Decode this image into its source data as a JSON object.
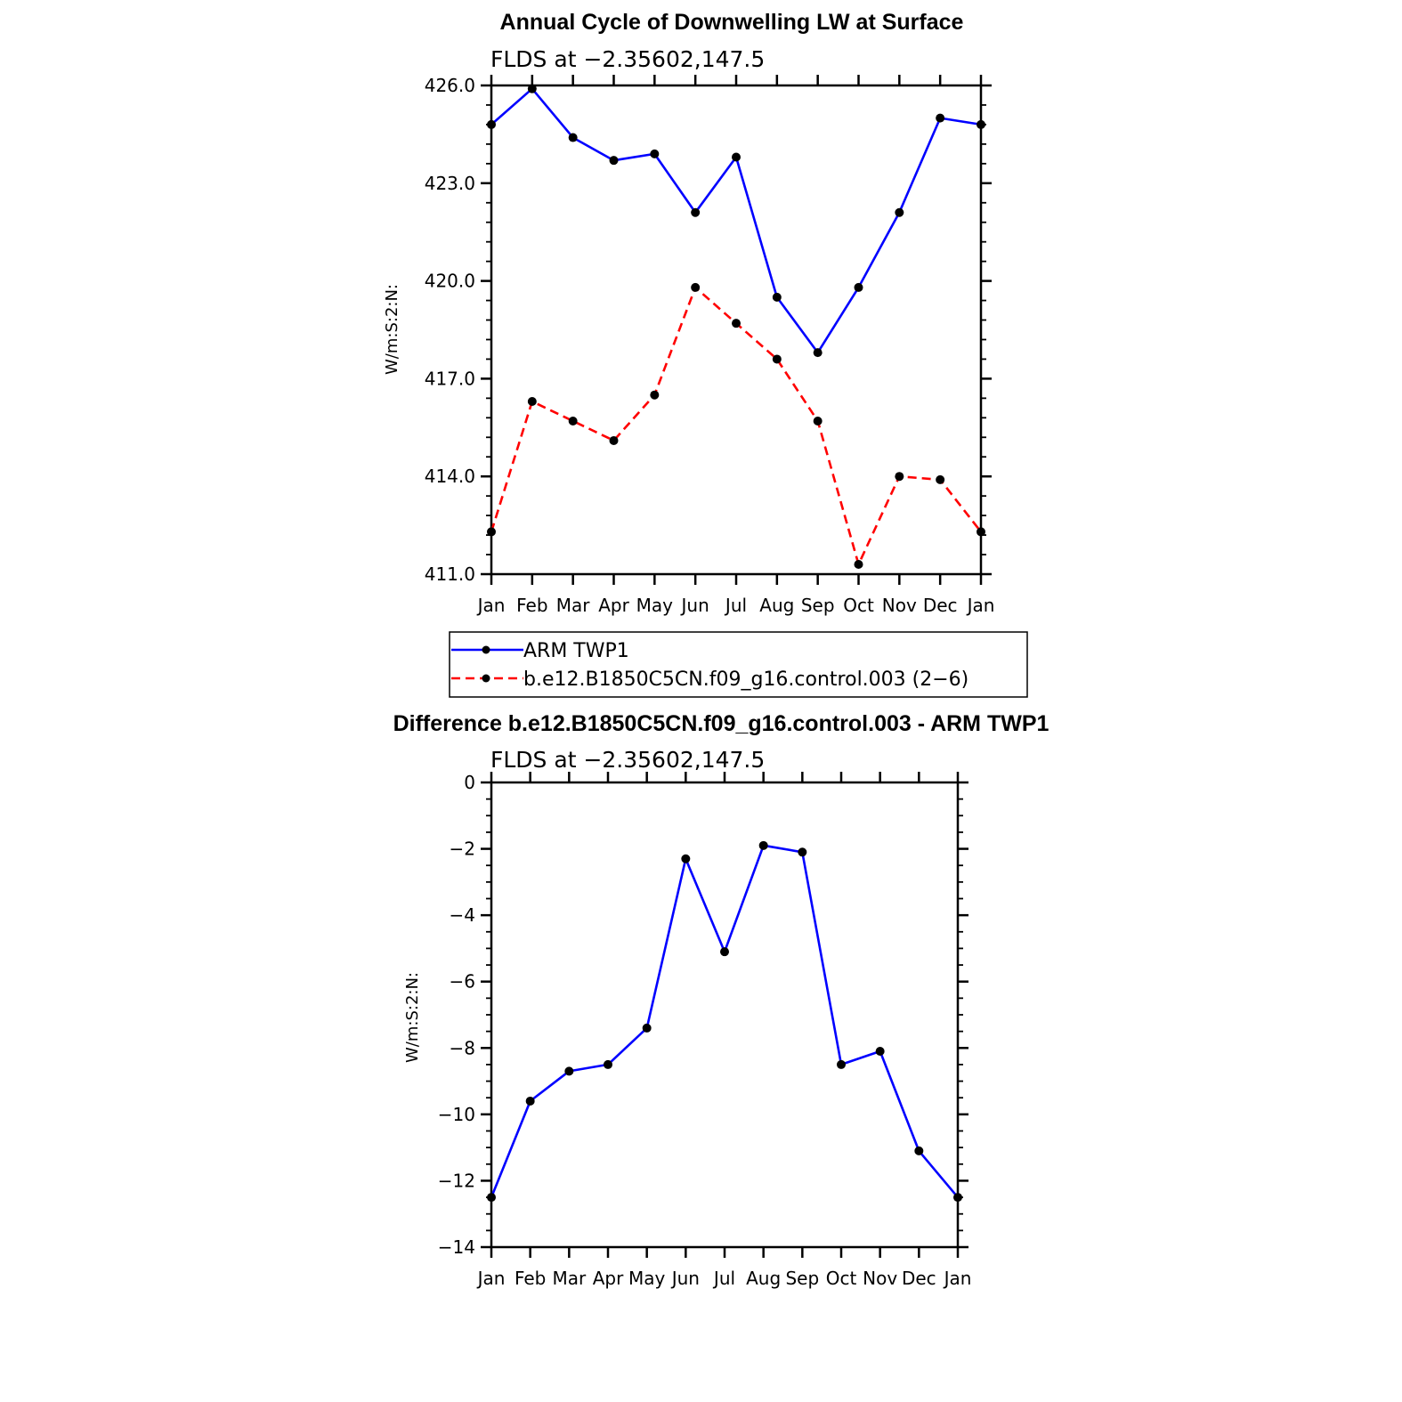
{
  "chart_data": [
    {
      "type": "line",
      "title": "Annual Cycle of Downwelling LW at Surface",
      "subtitle": "FLDS at −2.35602,147.5",
      "ylabel": "W/m:S:2:N:",
      "ylim": [
        411.0,
        426.0
      ],
      "yticks": [
        "411.0",
        "414.0",
        "417.0",
        "420.0",
        "423.0",
        "426.0"
      ],
      "categories": [
        "Jan",
        "Feb",
        "Mar",
        "Apr",
        "May",
        "Jun",
        "Jul",
        "Aug",
        "Sep",
        "Oct",
        "Nov",
        "Dec",
        "Jan"
      ],
      "series": [
        {
          "name": "ARM  TWP1",
          "color": "#0000ff",
          "dash": "solid",
          "values": [
            424.8,
            425.9,
            424.4,
            423.7,
            423.9,
            422.1,
            423.8,
            419.5,
            417.8,
            419.8,
            422.1,
            425.0,
            424.8
          ]
        },
        {
          "name": "b.e12.B1850C5CN.f09_g16.control.003 (2−6)",
          "color": "#ff0000",
          "dash": "dashed",
          "values": [
            412.3,
            416.3,
            415.7,
            415.1,
            416.5,
            419.8,
            418.7,
            417.6,
            415.7,
            411.3,
            414.0,
            413.9,
            412.3
          ]
        }
      ],
      "legend": "below"
    },
    {
      "type": "line",
      "title": "Difference b.e12.B1850C5CN.f09_g16.control.003 - ARM TWP1",
      "subtitle": "FLDS at −2.35602,147.5",
      "ylabel": "W/m:S:2:N:",
      "ylim": [
        -14,
        0
      ],
      "yticks": [
        "−14",
        "−12",
        "−10",
        "−8",
        "−6",
        "−4",
        "−2",
        "0"
      ],
      "categories": [
        "Jan",
        "Feb",
        "Mar",
        "Apr",
        "May",
        "Jun",
        "Jul",
        "Aug",
        "Sep",
        "Oct",
        "Nov",
        "Dec",
        "Jan"
      ],
      "series": [
        {
          "color": "#0000ff",
          "dash": "solid",
          "values": [
            -12.5,
            -9.6,
            -8.7,
            -8.5,
            -7.4,
            -2.3,
            -5.1,
            -1.9,
            -2.1,
            -8.5,
            -8.1,
            -11.1,
            -12.5
          ]
        }
      ]
    }
  ]
}
